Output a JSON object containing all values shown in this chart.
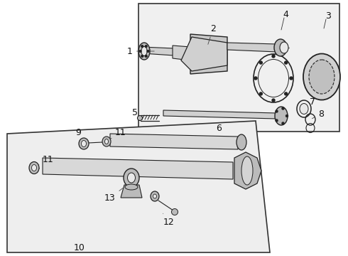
{
  "bg_color": "#ffffff",
  "dc": "#222222",
  "lc": "#444444",
  "gf": "#d4d4d4",
  "lg": "#e8e8e8",
  "mg": "#bbbbbb",
  "fs": 9,
  "be": "#333333"
}
